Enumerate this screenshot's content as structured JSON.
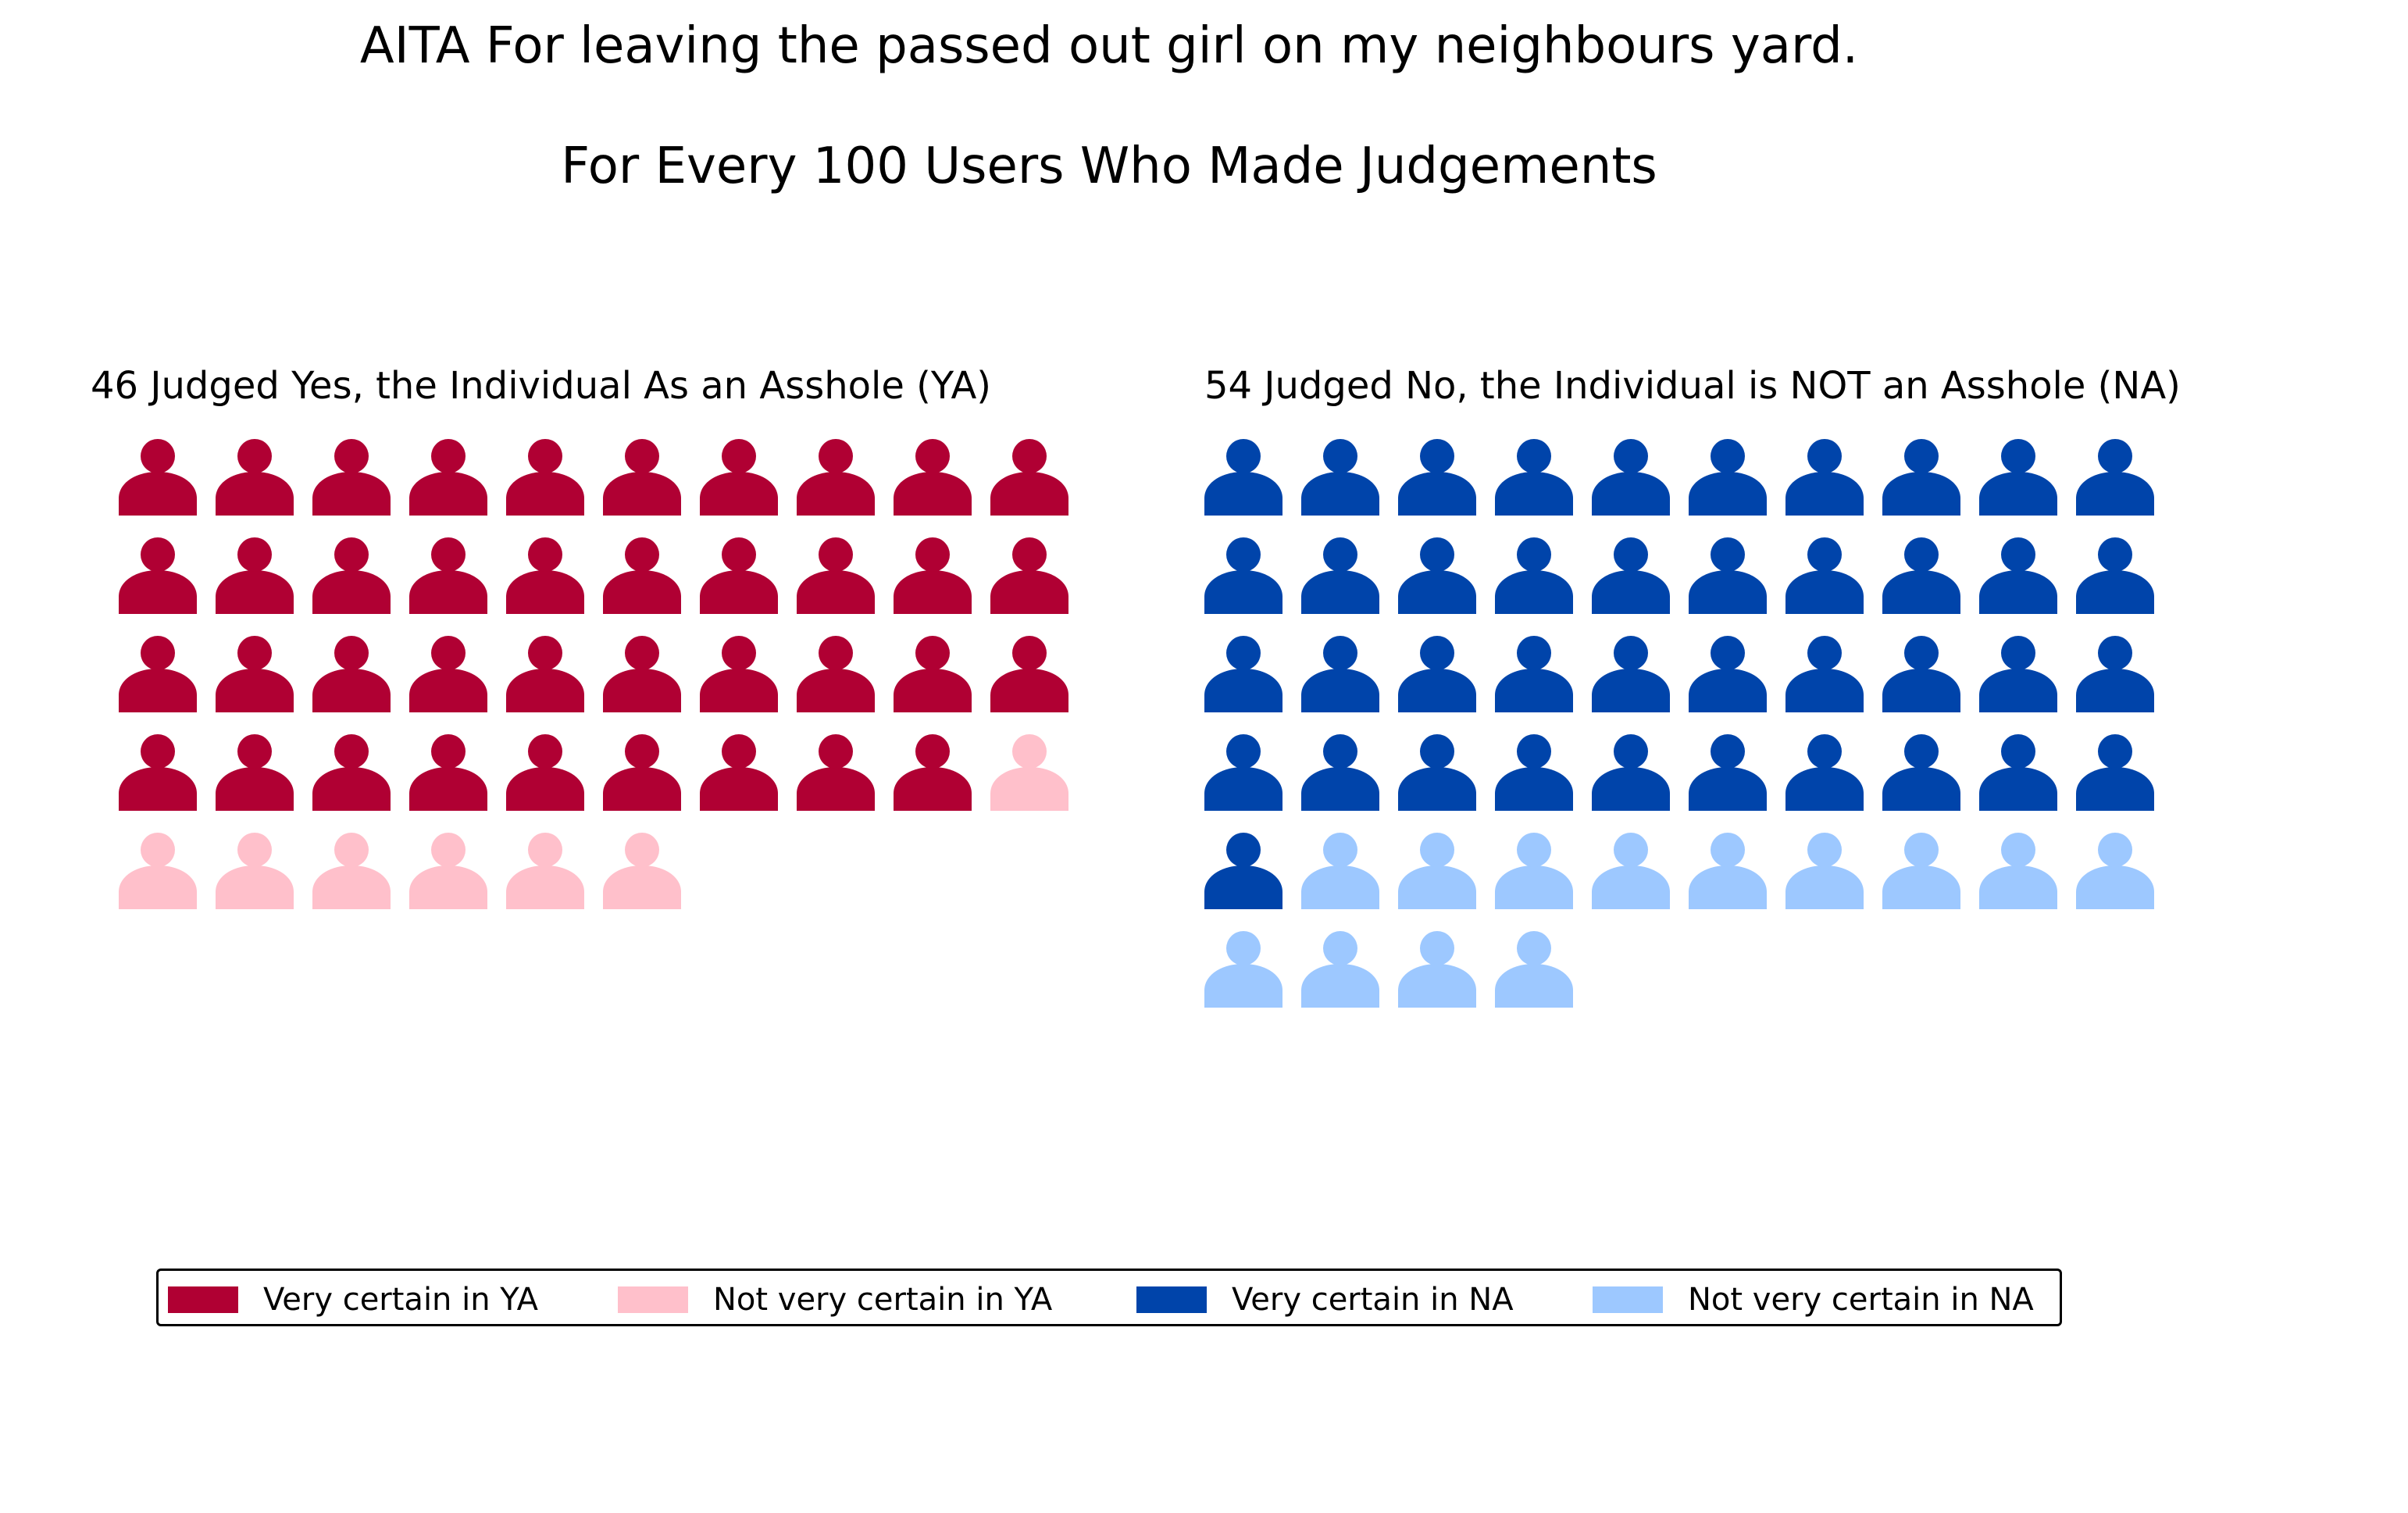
{
  "title": "AITA For leaving the passed out girl on my neighbours yard.",
  "subtitle": "For Every 100 Users Who Made Judgements",
  "chart_data": {
    "type": "waffle",
    "icon": "person-icon",
    "columns": 10,
    "total_users": 100,
    "panels": [
      {
        "name": "YA",
        "title": "46 Judged Yes, the Individual As an Asshole (YA)",
        "total": 46,
        "segments": [
          {
            "label": "Very certain in YA",
            "count": 39,
            "color": "#b00033"
          },
          {
            "label": "Not very certain in YA",
            "count": 7,
            "color": "#ffc0cb"
          }
        ]
      },
      {
        "name": "NA",
        "title": "54 Judged No, the Individual is NOT an Asshole (NA)",
        "total": 54,
        "segments": [
          {
            "label": "Very certain in NA",
            "count": 41,
            "color": "#0044aa"
          },
          {
            "label": "Not very certain in NA",
            "count": 13,
            "color": "#9dc8ff"
          }
        ]
      }
    ],
    "legend": {
      "placement": "bottom",
      "entries": [
        {
          "label": "Very certain in YA",
          "color": "#b00033"
        },
        {
          "label": "Not very certain in YA",
          "color": "#ffc0cb"
        },
        {
          "label": "Very certain in NA",
          "color": "#0044aa"
        },
        {
          "label": "Not very certain in NA",
          "color": "#9dc8ff"
        }
      ]
    }
  }
}
